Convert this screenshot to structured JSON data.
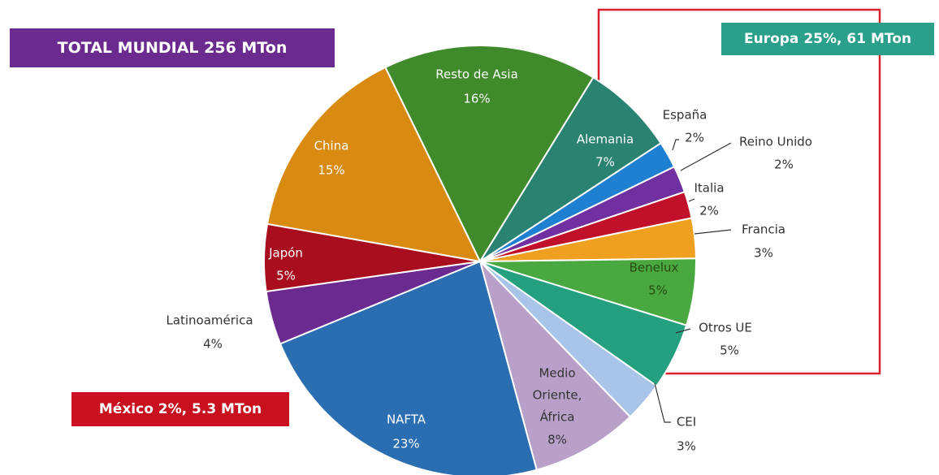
{
  "chart_data": {
    "type": "pie",
    "categories": [
      "Resto de Asia",
      "Alemania",
      "España",
      "Reino Unido",
      "Italia",
      "Francia",
      "Benelux",
      "Otros UE",
      "CEI",
      "Medio Oriente, África",
      "NAFTA",
      "Latinoamérica",
      "Japón",
      "China"
    ],
    "values": [
      16,
      7,
      2,
      2,
      2,
      3,
      5,
      5,
      3,
      8,
      23,
      4,
      5,
      15
    ],
    "value_labels": [
      "16%",
      "7%",
      "2%",
      "2%",
      "2%",
      "3%",
      "5%",
      "5%",
      "3%",
      "8%",
      "23%",
      "4%",
      "5%",
      "15%"
    ],
    "colors": [
      "#3f8a2a",
      "#2a8270",
      "#1f7fd0",
      "#7030a0",
      "#c0102a",
      "#f0a020",
      "#4aa840",
      "#24a080",
      "#a8c4e8",
      "#b8a0c8",
      "#2a6db0",
      "#6a2a90",
      "#a80e1e",
      "#d98a10"
    ],
    "annotations": [
      "TOTAL MUNDIAL 256 MTon",
      "Europa 25%, 61 MTon",
      "México 2%, 5.3 MTon"
    ]
  }
}
